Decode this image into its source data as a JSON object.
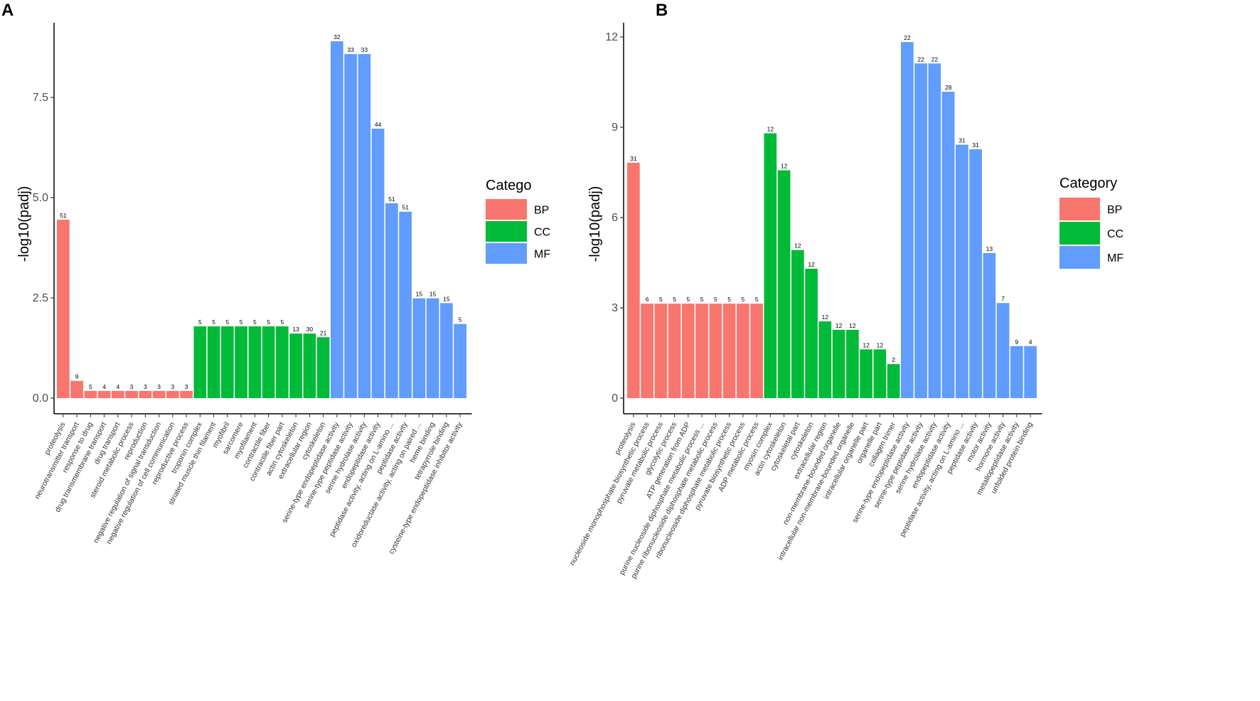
{
  "chart_data": [
    {
      "panel": "A",
      "type": "bar",
      "ylabel": "-log10(padj)",
      "xlabel": "",
      "ylim": [
        0,
        9.1
      ],
      "yticks": [
        0.0,
        2.5,
        5.0,
        7.5
      ],
      "ytick_labels": [
        "0.0",
        "2.5",
        "5.0",
        "7.5"
      ],
      "legend_title": "Catego",
      "legend": [
        {
          "name": "BP",
          "color": "#F8766D"
        },
        {
          "name": "CC",
          "color": "#00BA38"
        },
        {
          "name": "MF",
          "color": "#619CFF"
        }
      ],
      "bars": [
        {
          "label": "proteolysis",
          "value": 4.45,
          "count": "51",
          "category": "BP"
        },
        {
          "label": "neurotransmitter transport",
          "value": 0.43,
          "count": "9",
          "category": "BP"
        },
        {
          "label": "response to drug",
          "value": 0.18,
          "count": "5",
          "category": "BP"
        },
        {
          "label": "drug transmembrane transport",
          "value": 0.18,
          "count": "4",
          "category": "BP"
        },
        {
          "label": "drug transport",
          "value": 0.18,
          "count": "4",
          "category": "BP"
        },
        {
          "label": "steroid metabolic process",
          "value": 0.18,
          "count": "3",
          "category": "BP"
        },
        {
          "label": "reproduction",
          "value": 0.18,
          "count": "3",
          "category": "BP"
        },
        {
          "label": "negative regulation of signal transduction",
          "value": 0.18,
          "count": "3",
          "category": "BP"
        },
        {
          "label": "negative regulation of cell communication",
          "value": 0.18,
          "count": "3",
          "category": "BP"
        },
        {
          "label": "reproductive process",
          "value": 0.18,
          "count": "3",
          "category": "BP"
        },
        {
          "label": "troponin complex",
          "value": 1.79,
          "count": "5",
          "category": "CC"
        },
        {
          "label": "striated muscle thin filament",
          "value": 1.79,
          "count": "5",
          "category": "CC"
        },
        {
          "label": "myofibril",
          "value": 1.79,
          "count": "5",
          "category": "CC"
        },
        {
          "label": "sarcomere",
          "value": 1.79,
          "count": "5",
          "category": "CC"
        },
        {
          "label": "myofilament",
          "value": 1.79,
          "count": "5",
          "category": "CC"
        },
        {
          "label": "contractile fiber",
          "value": 1.79,
          "count": "5",
          "category": "CC"
        },
        {
          "label": "contractile fiber part",
          "value": 1.79,
          "count": "5",
          "category": "CC"
        },
        {
          "label": "actin cytoskeleton",
          "value": 1.61,
          "count": "13",
          "category": "CC"
        },
        {
          "label": "extracellular region",
          "value": 1.61,
          "count": "30",
          "category": "CC"
        },
        {
          "label": "cytoskeleton",
          "value": 1.52,
          "count": "21",
          "category": "CC"
        },
        {
          "label": "serine-type endopeptidase activity",
          "value": 8.9,
          "count": "32",
          "category": "MF"
        },
        {
          "label": "serine-type peptidase activity",
          "value": 8.58,
          "count": "33",
          "category": "MF"
        },
        {
          "label": "serine hydrolase activity",
          "value": 8.58,
          "count": "33",
          "category": "MF"
        },
        {
          "label": "endopeptidase activity",
          "value": 6.72,
          "count": "44",
          "category": "MF"
        },
        {
          "label": "peptidase activity, acting on L-amino ...",
          "value": 4.86,
          "count": "51",
          "category": "MF"
        },
        {
          "label": "peptidase activity",
          "value": 4.65,
          "count": "51",
          "category": "MF"
        },
        {
          "label": "oxidoreductase activity, acting on paired ...",
          "value": 2.49,
          "count": "15",
          "category": "MF"
        },
        {
          "label": "heme binding",
          "value": 2.49,
          "count": "15",
          "category": "MF"
        },
        {
          "label": "tetrapyrrole binding",
          "value": 2.37,
          "count": "15",
          "category": "MF"
        },
        {
          "label": "cysteine-type endopeptidase inhibitor activity",
          "value": 1.85,
          "count": "5",
          "category": "MF"
        }
      ]
    },
    {
      "panel": "B",
      "type": "bar",
      "ylabel": "-log10(padj)",
      "xlabel": "",
      "ylim": [
        0,
        12.2
      ],
      "yticks": [
        0,
        3,
        6,
        9,
        12
      ],
      "ytick_labels": [
        "0",
        "3",
        "6",
        "9",
        "12"
      ],
      "legend_title": "Category",
      "legend": [
        {
          "name": "BP",
          "color": "#F8766D"
        },
        {
          "name": "CC",
          "color": "#00BA38"
        },
        {
          "name": "MF",
          "color": "#619CFF"
        }
      ],
      "bars": [
        {
          "label": "proteolysis",
          "value": 7.82,
          "count": "31",
          "category": "BP"
        },
        {
          "label": "nucleoside monophosphate biosynthetic process",
          "value": 3.14,
          "count": "6",
          "category": "BP"
        },
        {
          "label": "pyruvate metabolic process",
          "value": 3.14,
          "count": "5",
          "category": "BP"
        },
        {
          "label": "glycolytic process",
          "value": 3.14,
          "count": "5",
          "category": "BP"
        },
        {
          "label": "ATP generation from ADP",
          "value": 3.14,
          "count": "5",
          "category": "BP"
        },
        {
          "label": "purine nucleoside diphosphate metabolic process ...",
          "value": 3.14,
          "count": "5",
          "category": "BP"
        },
        {
          "label": "purine ribonucleoside diphosphate metabolic process",
          "value": 3.14,
          "count": "5",
          "category": "BP"
        },
        {
          "label": "ribonucleoside diphosphate metabolic process",
          "value": 3.14,
          "count": "5",
          "category": "BP"
        },
        {
          "label": "pyruvate biosynthetic process",
          "value": 3.14,
          "count": "5",
          "category": "BP"
        },
        {
          "label": "ADP metabolic process",
          "value": 3.14,
          "count": "5",
          "category": "BP"
        },
        {
          "label": "myosin complex",
          "value": 8.8,
          "count": "12",
          "category": "CC"
        },
        {
          "label": "actin cytoskeleton",
          "value": 7.57,
          "count": "12",
          "category": "CC"
        },
        {
          "label": "cytoskeletal part",
          "value": 4.92,
          "count": "12",
          "category": "CC"
        },
        {
          "label": "cytoskeleton",
          "value": 4.3,
          "count": "12",
          "category": "CC"
        },
        {
          "label": "extracellular region",
          "value": 2.55,
          "count": "12",
          "category": "CC"
        },
        {
          "label": "non-membrane-bounded organelle",
          "value": 2.27,
          "count": "12",
          "category": "CC"
        },
        {
          "label": "intracellular non-membrane-bounded organelle",
          "value": 2.27,
          "count": "12",
          "category": "CC"
        },
        {
          "label": "intracellular organelle part",
          "value": 1.62,
          "count": "12",
          "category": "CC"
        },
        {
          "label": "organelle part",
          "value": 1.62,
          "count": "12",
          "category": "CC"
        },
        {
          "label": "collagen trimer",
          "value": 1.13,
          "count": "2",
          "category": "CC"
        },
        {
          "label": "serine-type endopeptidase activity",
          "value": 11.83,
          "count": "22",
          "category": "MF"
        },
        {
          "label": "serine-type peptidase activity",
          "value": 11.12,
          "count": "22",
          "category": "MF"
        },
        {
          "label": "serine hydrolase activity",
          "value": 11.12,
          "count": "22",
          "category": "MF"
        },
        {
          "label": "endopeptidase activity",
          "value": 10.18,
          "count": "28",
          "category": "MF"
        },
        {
          "label": "peptidase activity, acting on L-amino ...",
          "value": 8.42,
          "count": "31",
          "category": "MF"
        },
        {
          "label": "peptidase activity",
          "value": 8.27,
          "count": "31",
          "category": "MF"
        },
        {
          "label": "motor activity",
          "value": 4.82,
          "count": "13",
          "category": "MF"
        },
        {
          "label": "hormone activity",
          "value": 3.16,
          "count": "7",
          "category": "MF"
        },
        {
          "label": "metallopeptidase activity",
          "value": 1.73,
          "count": "9",
          "category": "MF"
        },
        {
          "label": "unfolded protein binding",
          "value": 1.73,
          "count": "4",
          "category": "MF"
        }
      ]
    }
  ]
}
